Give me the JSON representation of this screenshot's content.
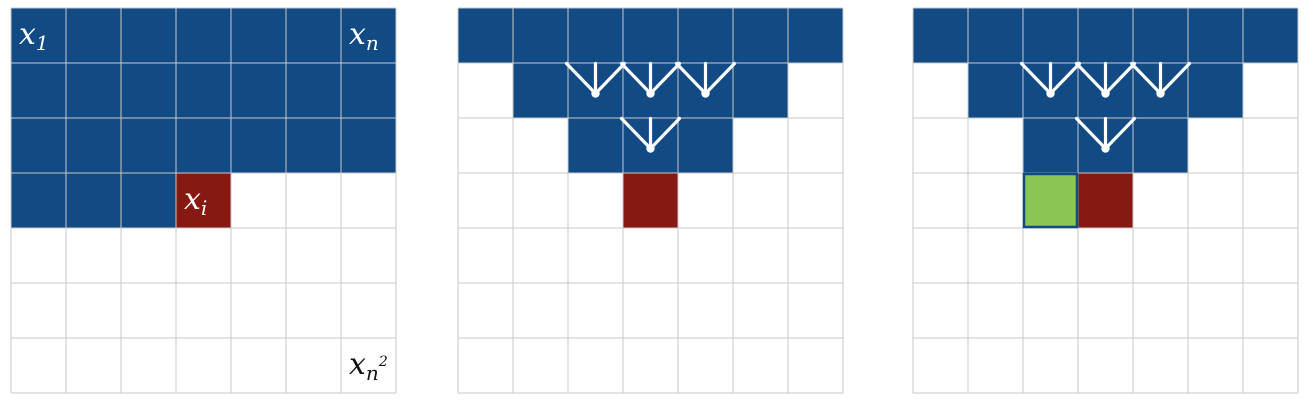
{
  "colors": {
    "blue": "#124a84",
    "red": "#861a13",
    "green": "#8bc553",
    "grid": "#c8c8c8",
    "white": "#ffffff",
    "arrow": "#ffffff",
    "text_light": "#ffffff",
    "text_dark": "#111111"
  },
  "grid": {
    "rows": 7,
    "cols": 7
  },
  "panels": [
    {
      "id": "panel-1",
      "blue_rows": [
        [
          0,
          0,
          6
        ],
        [
          1,
          0,
          6
        ],
        [
          2,
          0,
          6
        ],
        [
          3,
          0,
          2
        ]
      ],
      "red_cells": [
        [
          3,
          3
        ]
      ],
      "green_cells": [],
      "arrow_groups": [],
      "labels": [
        {
          "name": "x1-label",
          "row": 0,
          "col": 0,
          "base": "x",
          "sub": "1",
          "sup": "",
          "color": "text_light"
        },
        {
          "name": "xn-label",
          "row": 0,
          "col": 6,
          "base": "x",
          "sub": "n",
          "sup": "",
          "color": "text_light"
        },
        {
          "name": "xi-label",
          "row": 3,
          "col": 3,
          "base": "x",
          "sub": "i",
          "sup": "",
          "color": "text_light"
        },
        {
          "name": "xn2-label",
          "row": 6,
          "col": 6,
          "base": "x",
          "sub": "n",
          "sup": "2",
          "color": "text_dark"
        }
      ]
    },
    {
      "id": "panel-2",
      "blue_rows": [
        [
          0,
          0,
          6
        ],
        [
          1,
          1,
          5
        ],
        [
          2,
          2,
          4
        ]
      ],
      "red_cells": [
        [
          3,
          3
        ]
      ],
      "green_cells": [],
      "arrow_groups": [
        {
          "row": 1,
          "col": 2,
          "vs": 3
        },
        {
          "row": 1,
          "col": 3,
          "vs": 3
        },
        {
          "row": 1,
          "col": 4,
          "vs": 3
        },
        {
          "row": 2,
          "col": 3,
          "vs": 3
        }
      ],
      "labels": []
    },
    {
      "id": "panel-3",
      "blue_rows": [
        [
          0,
          0,
          6
        ],
        [
          1,
          1,
          5
        ],
        [
          2,
          2,
          4
        ]
      ],
      "red_cells": [
        [
          3,
          3
        ]
      ],
      "green_cells": [
        [
          3,
          2
        ]
      ],
      "arrow_groups": [
        {
          "row": 1,
          "col": 2,
          "vs": 3
        },
        {
          "row": 1,
          "col": 3,
          "vs": 3
        },
        {
          "row": 1,
          "col": 4,
          "vs": 3
        },
        {
          "row": 2,
          "col": 3,
          "vs": 3
        }
      ],
      "labels": []
    }
  ]
}
